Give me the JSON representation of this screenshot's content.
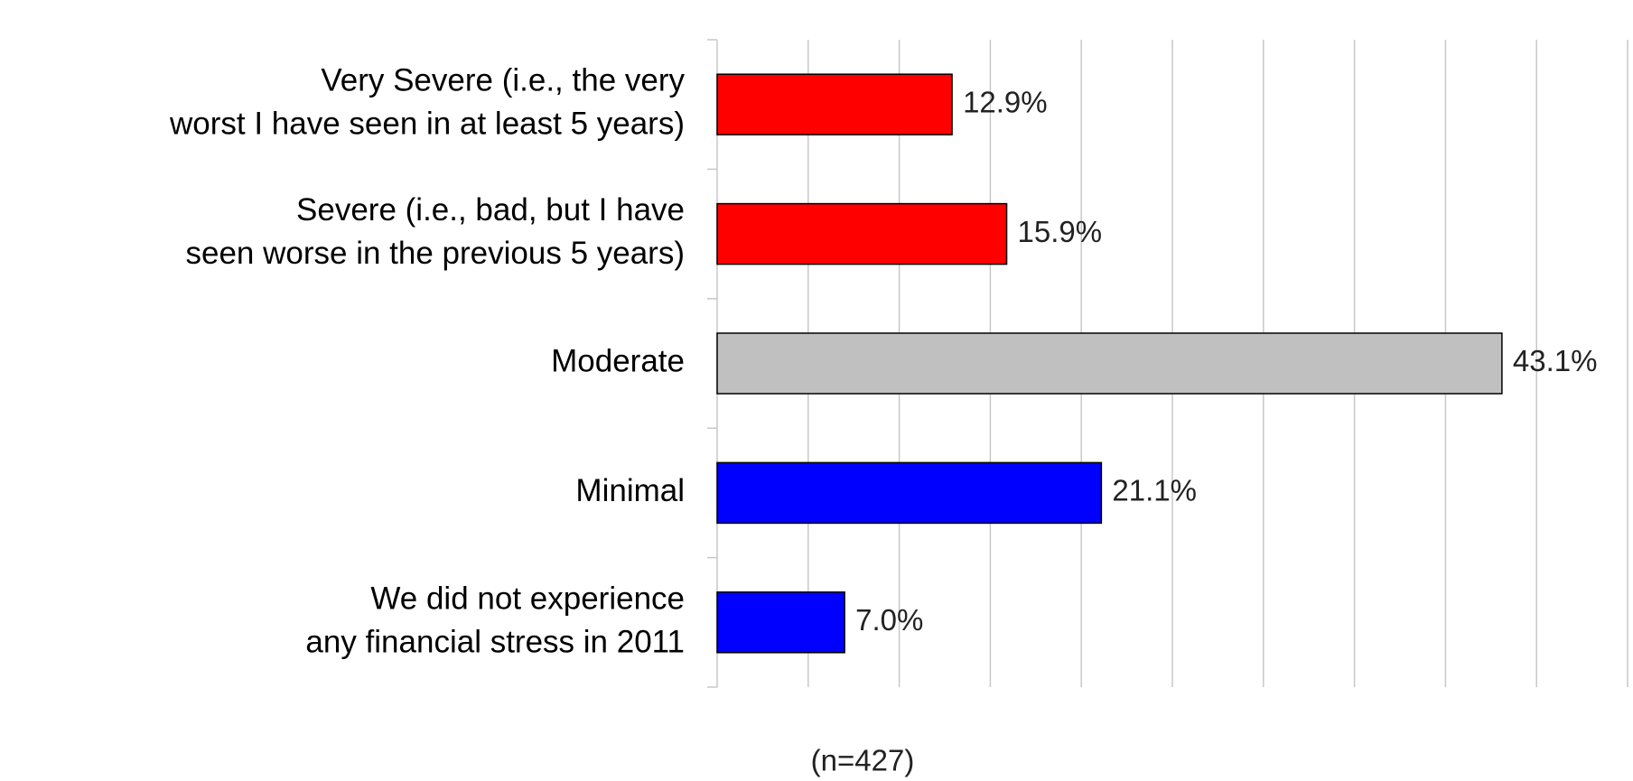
{
  "chart_data": {
    "type": "bar",
    "orientation": "horizontal",
    "categories": [
      [
        "Very Severe (i.e., the very",
        "worst I have seen in at least 5 years)"
      ],
      [
        "Severe (i.e., bad, but I have",
        "seen worse in the previous 5 years)"
      ],
      [
        "Moderate"
      ],
      [
        "Minimal"
      ],
      [
        "We did not experience",
        "any financial stress in 2011"
      ]
    ],
    "values": [
      12.9,
      15.9,
      43.1,
      21.1,
      7.0
    ],
    "value_labels": [
      "12.9%",
      "15.9%",
      "43.1%",
      "21.1%",
      "7.0%"
    ],
    "colors": [
      "#ff0000",
      "#ff0000",
      "#c0c0c0",
      "#0000ff",
      "#0000ff"
    ],
    "xlim": [
      0,
      50
    ],
    "xticks": [
      0,
      5,
      10,
      15,
      20,
      25,
      30,
      35,
      40,
      45,
      50
    ],
    "grid": true,
    "annotation": "(n=427)"
  }
}
